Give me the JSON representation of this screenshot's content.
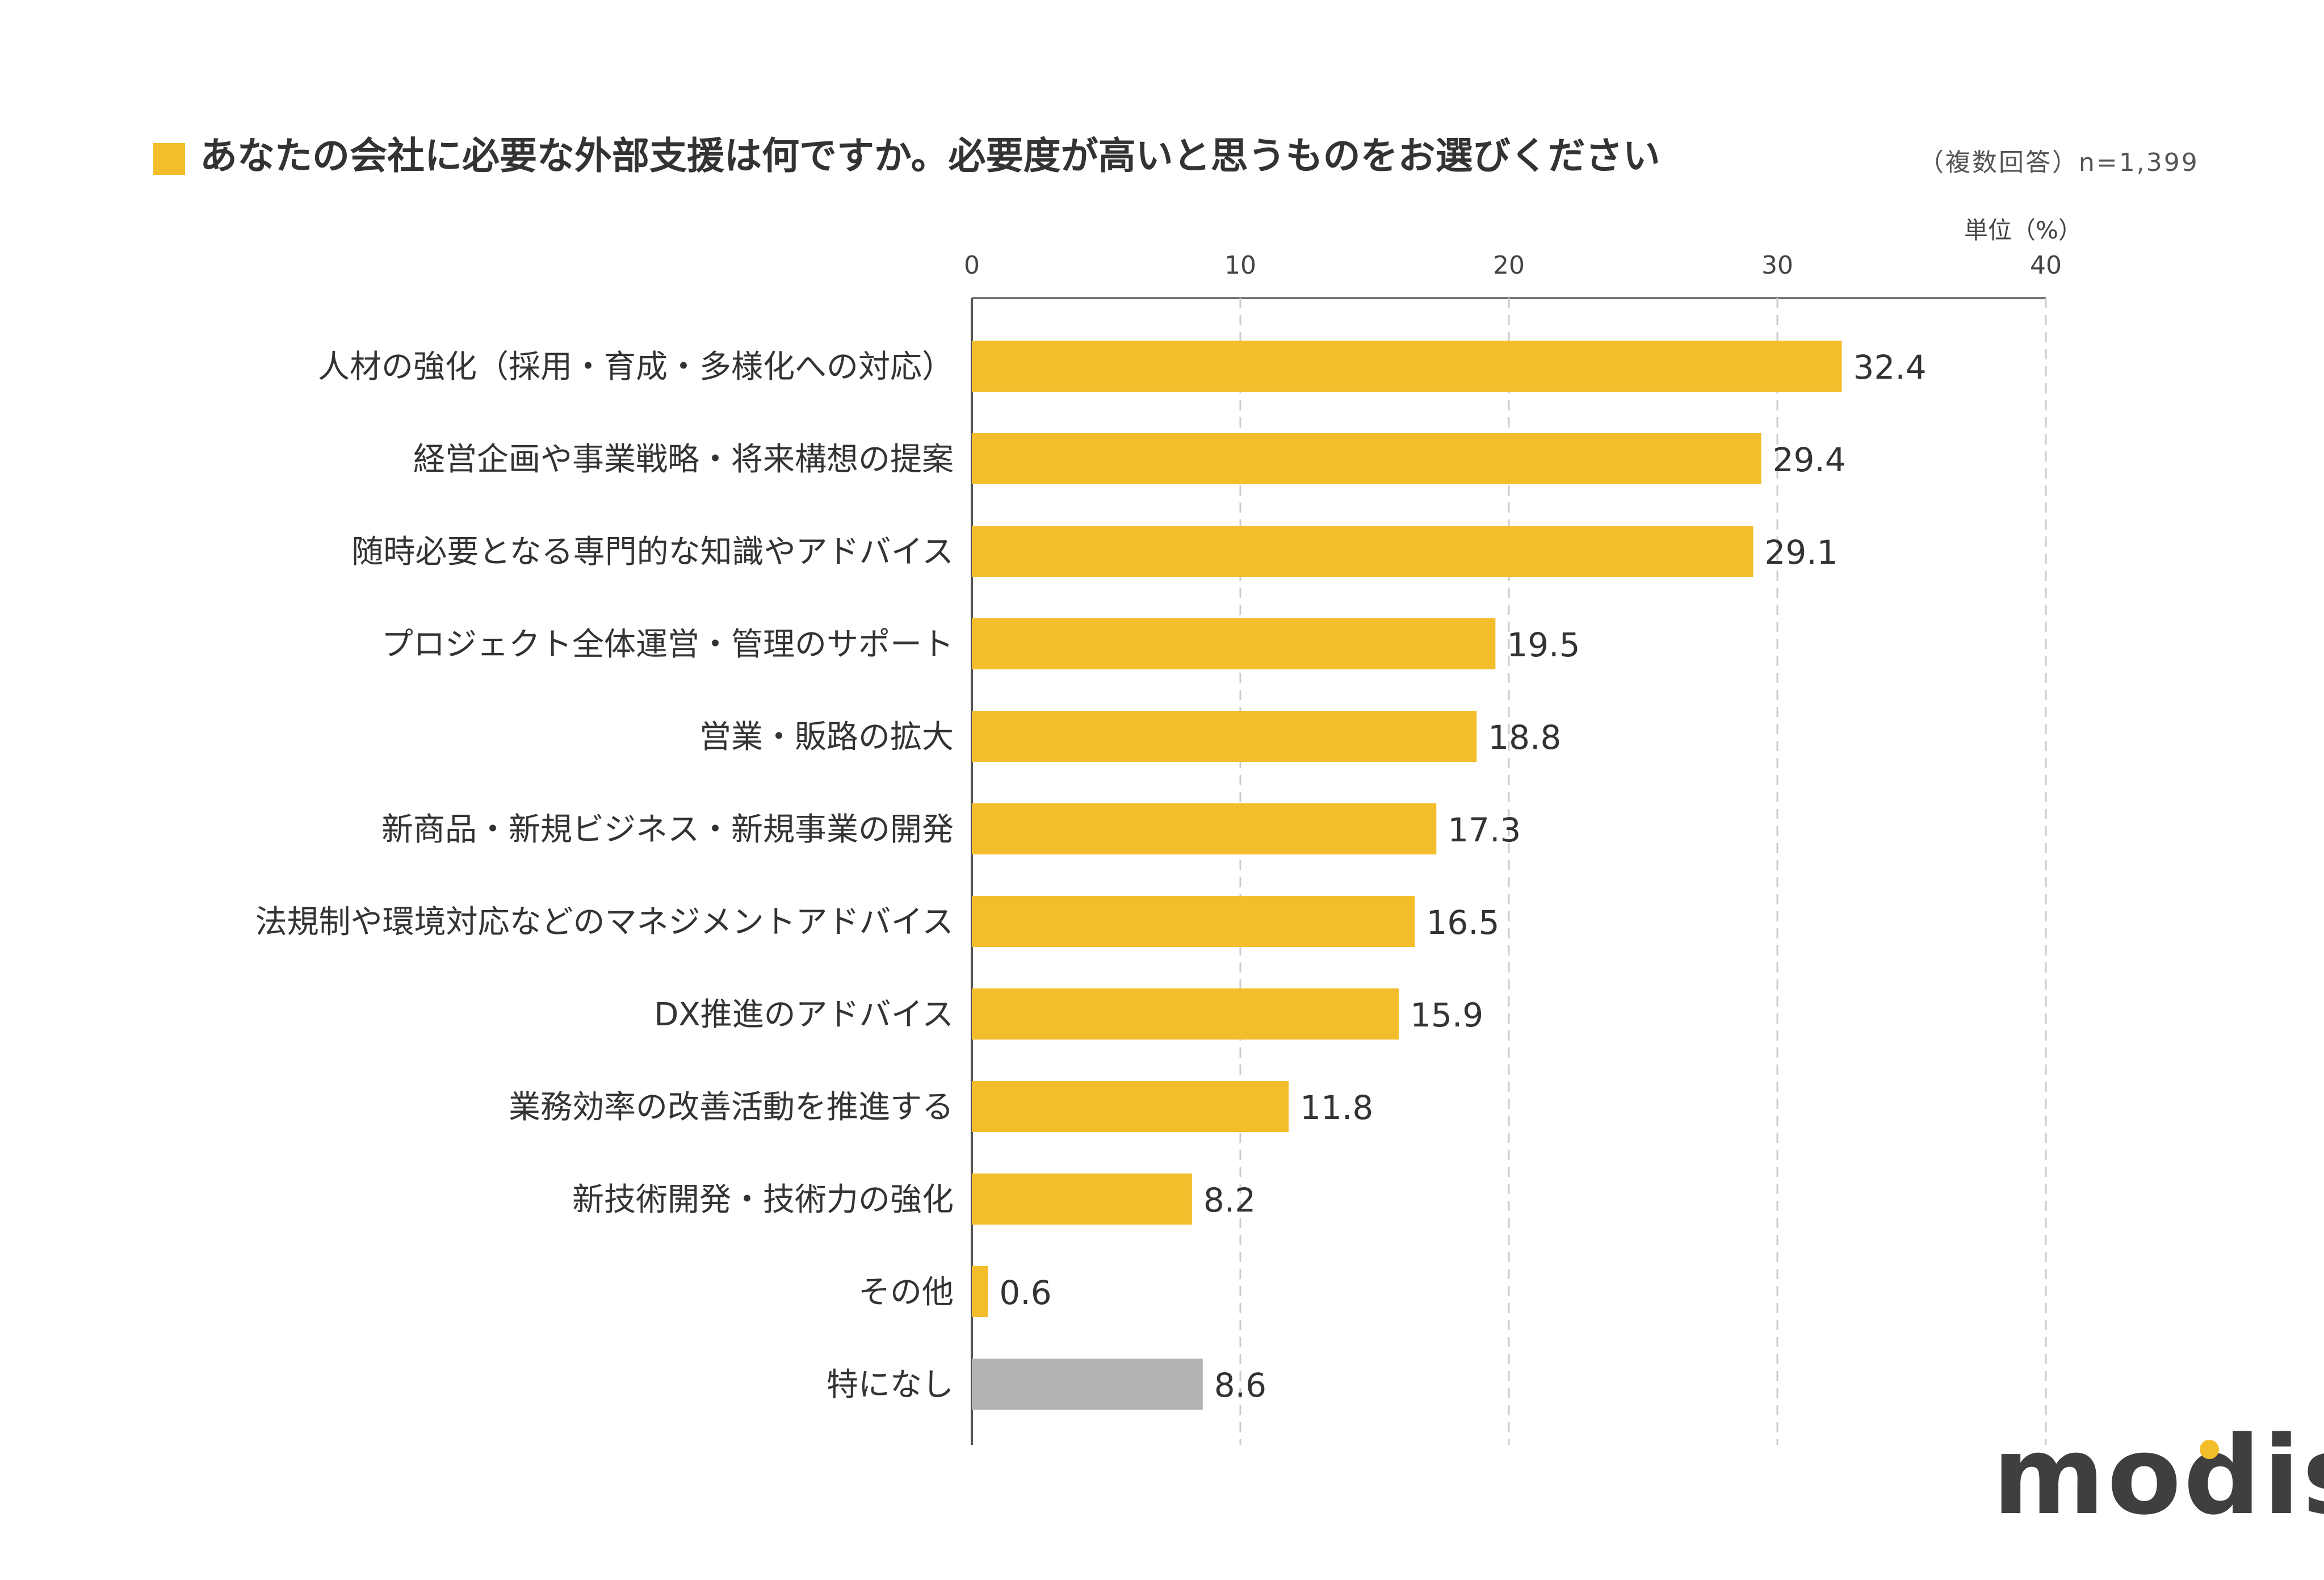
{
  "title": "あなたの会社に必要な外部支援は何ですか。必要度が高いと思うものをお選びください",
  "note": "（複数回答）n=1,399",
  "unit": "単位（%）",
  "logo": "modis",
  "colors": {
    "accent": "#F3BD2C",
    "gray": "#B3B3B3",
    "grid": "#CCCCCC",
    "axis": "#555555",
    "text": "#333333"
  },
  "chart_data": {
    "type": "bar",
    "orientation": "horizontal",
    "categories": [
      "人材の強化（採用・育成・多様化への対応）",
      "経営企画や事業戦略・将来構想の提案",
      "随時必要となる専門的な知識やアドバイス",
      "プロジェクト全体運営・管理のサポート",
      "営業・販路の拡大",
      "新商品・新規ビジネス・新規事業の開発",
      "法規制や環境対応などのマネジメントアドバイス",
      "DX推進のアドバイス",
      "業務効率の改善活動を推進する",
      "新技術開発・技術力の強化",
      "その他",
      "特になし"
    ],
    "values": [
      32.4,
      29.4,
      29.1,
      19.5,
      18.8,
      17.3,
      16.5,
      15.9,
      11.8,
      8.2,
      0.6,
      8.6
    ],
    "value_labels": [
      "32.4",
      "29.4",
      "29.1",
      "19.5",
      "18.8",
      "17.3",
      "16.5",
      "15.9",
      "11.8",
      "8.2",
      "0.6",
      "8.6"
    ],
    "highlight_gray_index": 11,
    "xlim": [
      0,
      40
    ],
    "ticks": [
      "0",
      "10",
      "20",
      "30",
      "40"
    ],
    "tick_values": [
      0,
      10,
      20,
      30,
      40
    ],
    "grid": true,
    "legend": "none"
  }
}
